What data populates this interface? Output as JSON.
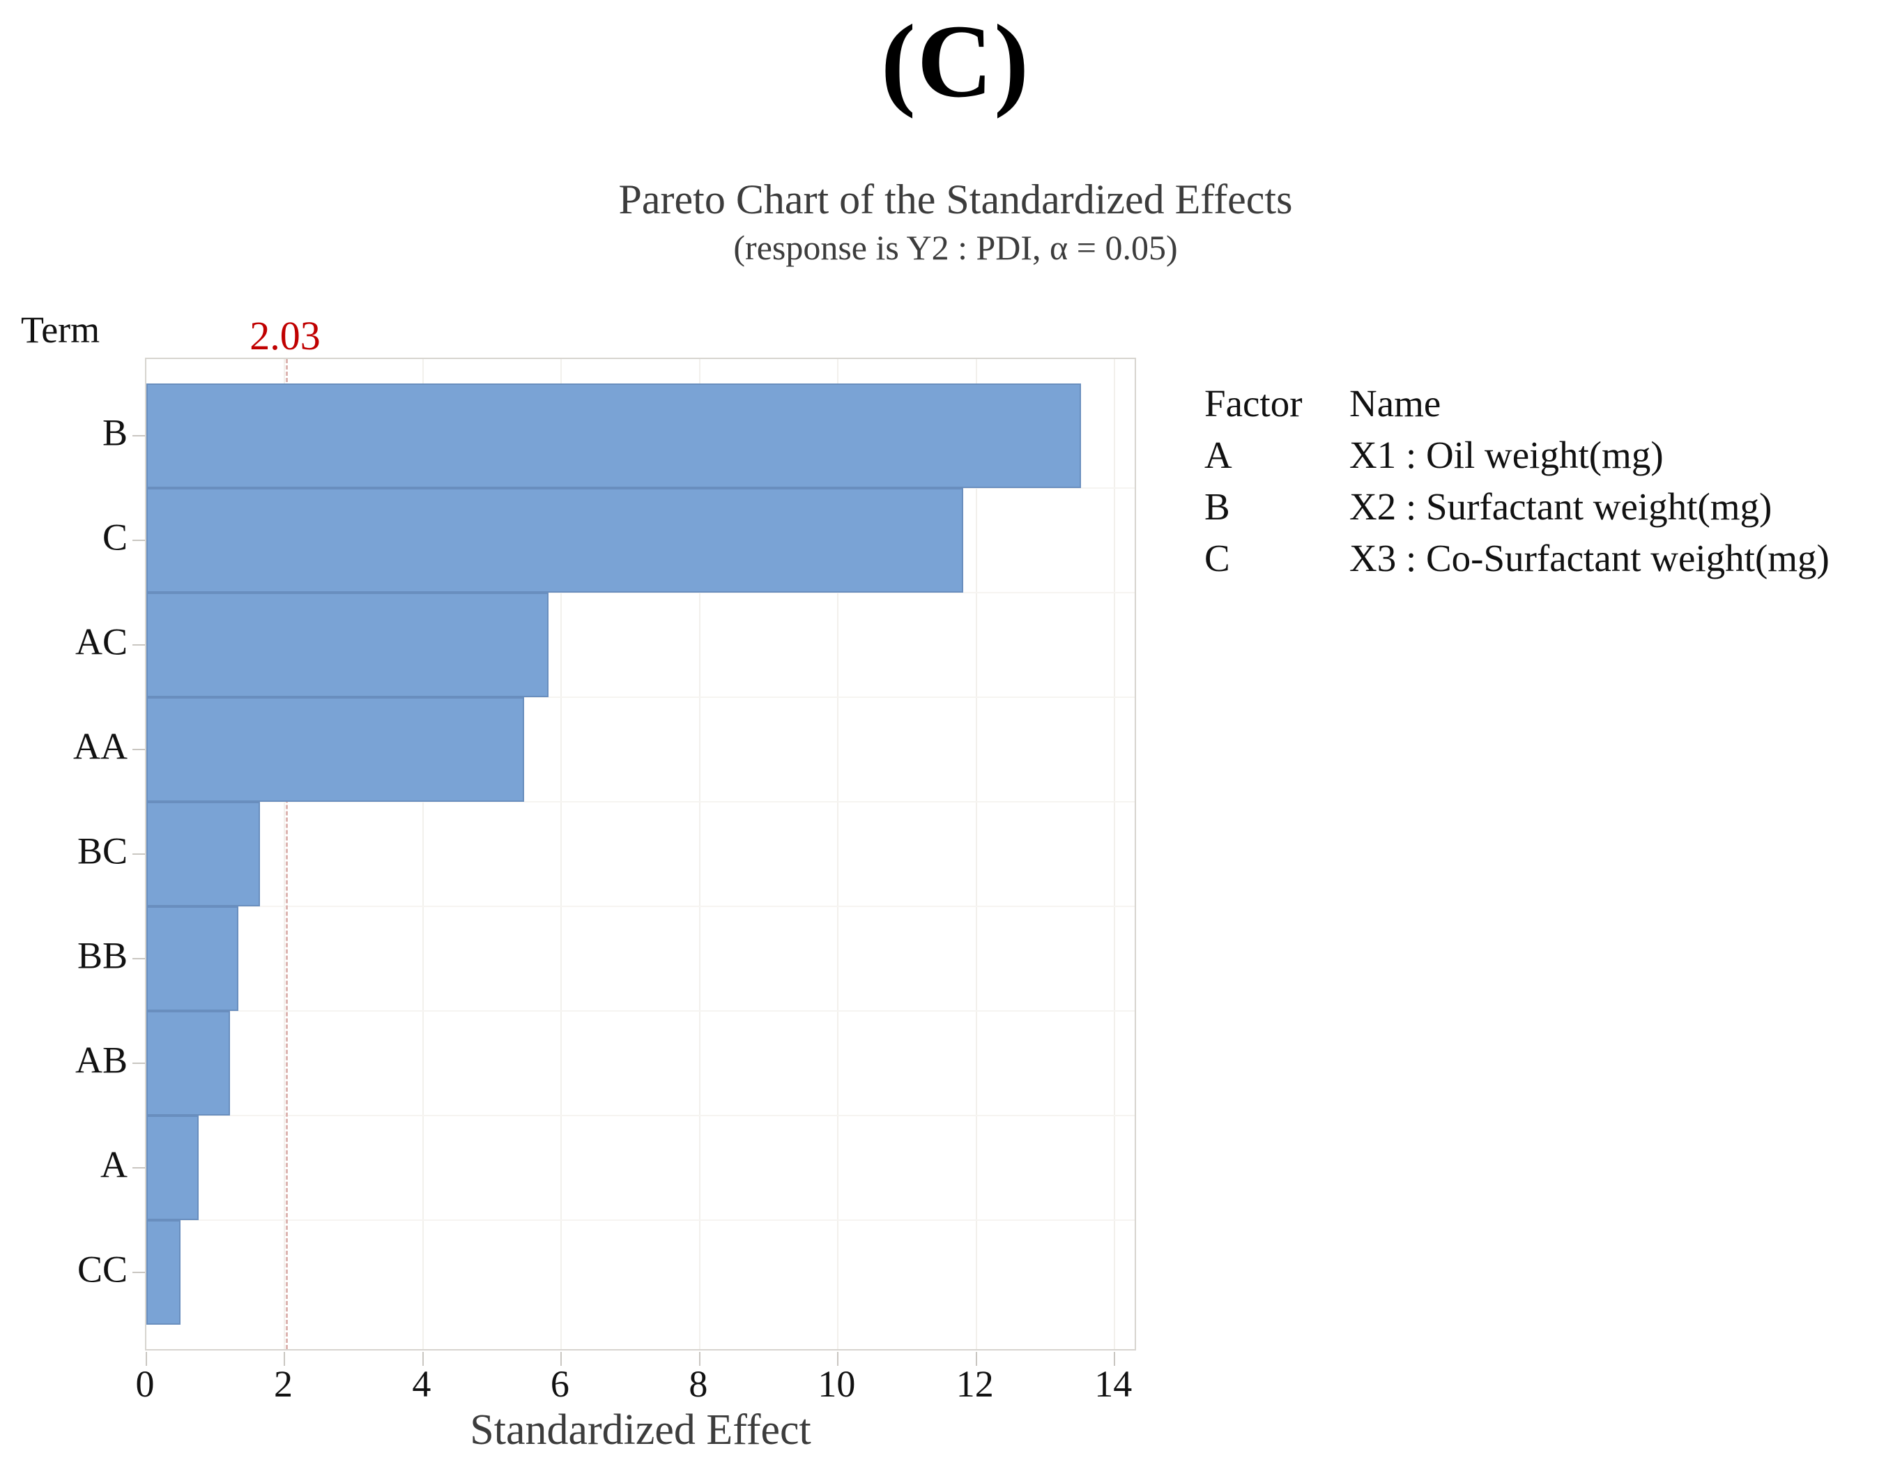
{
  "panel_label": "(C)",
  "chart": {
    "title": "Pareto Chart of the Standardized Effects",
    "subtitle": "(response is Y2 : PDI, α = 0.05)",
    "term_label": "Term",
    "reference_value_label": "2.03",
    "xlabel": "Standardized Effect"
  },
  "legend": {
    "factor_header": "Factor",
    "name_header": "Name",
    "rows": [
      {
        "factor": "A",
        "name": "X1 : Oil weight(mg)"
      },
      {
        "factor": "B",
        "name": "X2 : Surfactant weight(mg)"
      },
      {
        "factor": "C",
        "name": "X3 : Co-Surfactant weight(mg)"
      }
    ]
  },
  "colors": {
    "bar_fill": "#7aa3d5",
    "bar_edge": "rgba(88,122,168,0.5)",
    "reference_line": "#dcb4b0",
    "reference_label": "#c00000",
    "frame": "#d7d4cf",
    "gridline_v": "#f2f0ec",
    "gridline_h": "#f6f4f1",
    "tick": "#c9c6c1",
    "title_text": "#3c3c3c",
    "axis_text": "#111111"
  },
  "chart_data": {
    "type": "bar",
    "orientation": "horizontal",
    "title": "Pareto Chart of the Standardized Effects",
    "subtitle": "(response is Y2 : PDI, α = 0.05)",
    "xlabel": "Standardized Effect",
    "ylabel": "Term",
    "categories": [
      "B",
      "C",
      "AC",
      "AA",
      "BC",
      "BB",
      "AB",
      "A",
      "CC"
    ],
    "values": [
      13.51,
      11.81,
      5.81,
      5.46,
      1.64,
      1.33,
      1.21,
      0.76,
      0.49
    ],
    "reference_line": 2.03,
    "x_ticks": [
      0,
      2,
      4,
      6,
      8,
      10,
      12,
      14
    ],
    "xlim": [
      0,
      14.33
    ],
    "grid": "faint vertical at ticks, faint horizontal at bar boundaries",
    "legend_position": "right"
  }
}
